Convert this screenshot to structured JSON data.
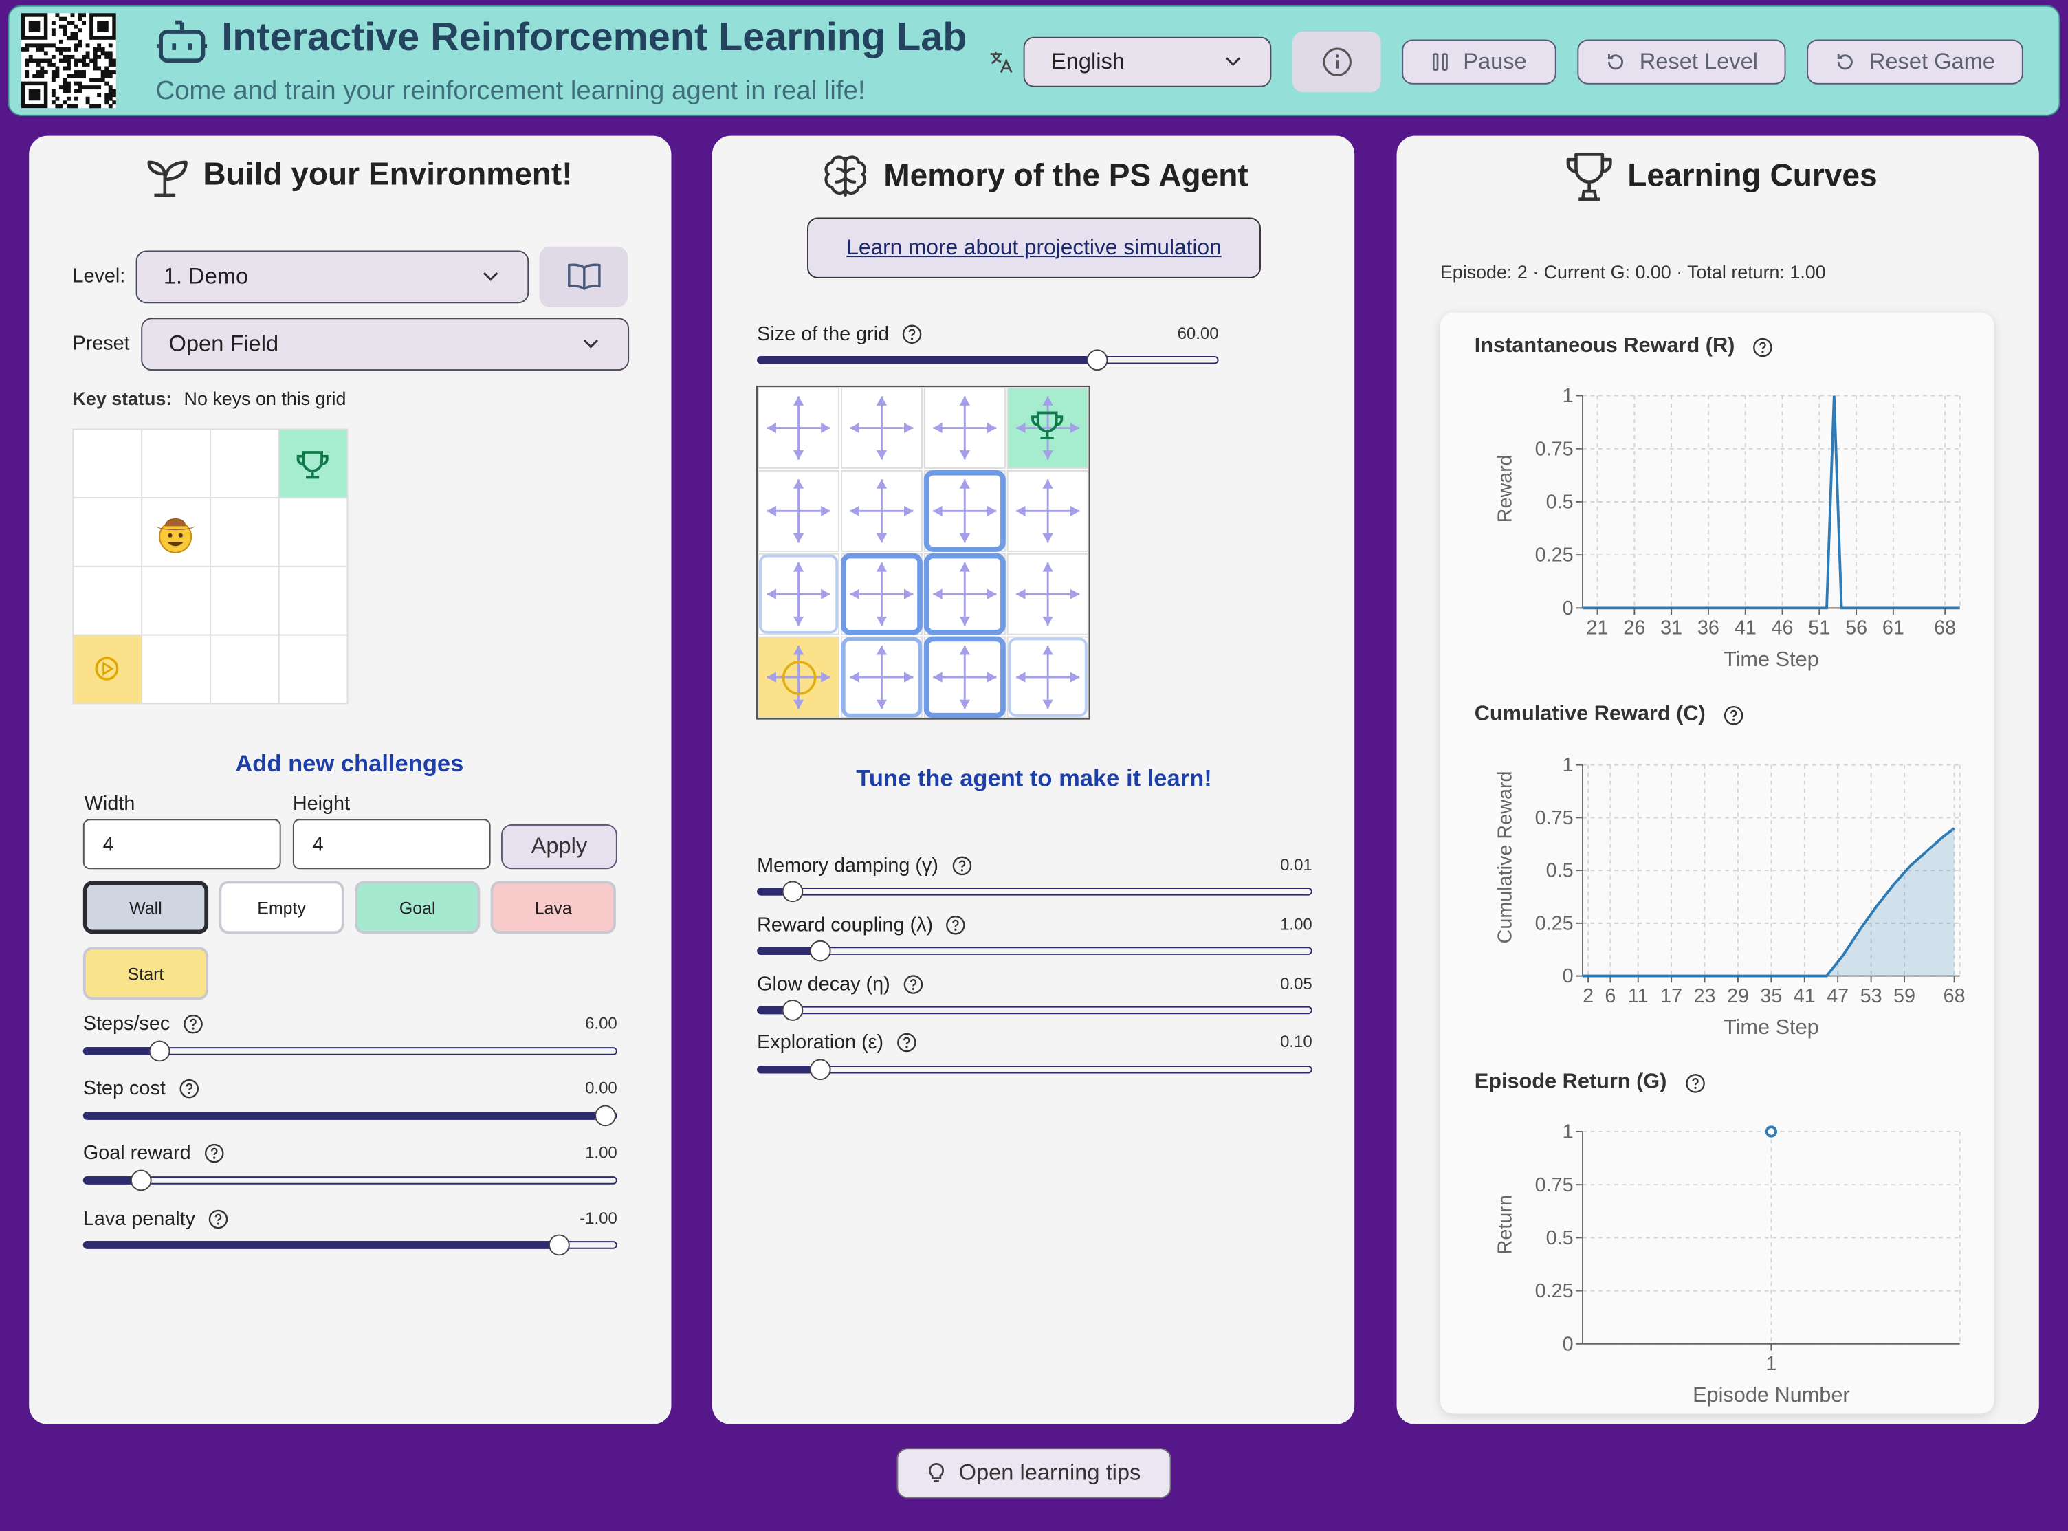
{
  "header": {
    "title": "Interactive Reinforcement Learning Lab",
    "subtitle": "Come and train your reinforcement learning agent in real life!",
    "language": "English",
    "buttons": [
      "Pause",
      "Reset Level",
      "Reset Game"
    ]
  },
  "environment": {
    "title": "Build your Environment!",
    "level_label": "Level:",
    "level": "1. Demo",
    "preset_label": "Preset",
    "preset": "Open Field",
    "key_status_label": "Key status:",
    "key_status": "No keys on this grid",
    "challenges_title": "Add new challenges",
    "width_label": "Width",
    "width": "4",
    "height_label": "Height",
    "height": "4",
    "apply": "Apply",
    "tiles": [
      "Wall",
      "Empty",
      "Goal",
      "Lava",
      "Start"
    ],
    "sliders": [
      {
        "label": "Steps/sec",
        "value": "6.00"
      },
      {
        "label": "Step cost",
        "value": "0.00"
      },
      {
        "label": "Goal reward",
        "value": "1.00"
      },
      {
        "label": "Lava penalty",
        "value": "-1.00"
      }
    ]
  },
  "memory": {
    "title": "Memory of the PS Agent",
    "link": "Learn more about projective simulation",
    "grid_size": {
      "label": "Size of the grid",
      "value": "60.00"
    },
    "tune_title": "Tune the agent to make it learn!",
    "sliders": [
      {
        "label": "Memory damping (γ)",
        "value": "0.01"
      },
      {
        "label": "Reward coupling (λ)",
        "value": "1.00"
      },
      {
        "label": "Glow decay (η)",
        "value": "0.05"
      },
      {
        "label": "Exploration (ε)",
        "value": "0.10"
      }
    ]
  },
  "learning_curves": {
    "title": "Learning Curves",
    "episode_info": "Episode: 2 · Current G: 0.00 · Total return: 1.00",
    "charts": [
      {
        "type": "line",
        "title": "Instantaneous Reward (R)",
        "x_label": "Time Step",
        "y_label": "Reward",
        "color": "#2f7bb5",
        "grid": true,
        "x": [
          19,
          52,
          53,
          54,
          70
        ],
        "values": [
          0,
          0,
          1,
          0,
          0
        ],
        "xlim": [
          19,
          70
        ],
        "ylim": [
          0,
          1
        ],
        "xticks": [
          21,
          26,
          31,
          36,
          41,
          46,
          51,
          56,
          61,
          68
        ],
        "yticks": [
          0,
          0.25,
          0.5,
          0.75,
          1
        ]
      },
      {
        "type": "area",
        "title": "Cumulative Reward (C)",
        "x_label": "Time Step",
        "y_label": "Cumulative Reward",
        "color": "#2f7bb5",
        "grid": true,
        "x": [
          1,
          45,
          48,
          51,
          54,
          57,
          60,
          63,
          66,
          68
        ],
        "values": [
          0,
          0,
          0.1,
          0.22,
          0.33,
          0.43,
          0.52,
          0.59,
          0.66,
          0.7
        ],
        "xlim": [
          1,
          69
        ],
        "ylim": [
          0,
          1
        ],
        "xticks": [
          2,
          6,
          11,
          17,
          23,
          29,
          35,
          41,
          47,
          53,
          59,
          68
        ],
        "yticks": [
          0,
          0.25,
          0.5,
          0.75,
          1
        ]
      },
      {
        "type": "scatter",
        "title": "Episode Return (G)",
        "x_label": "Episode Number",
        "y_label": "Return",
        "color": "#2f7bb5",
        "grid": true,
        "x": [
          1
        ],
        "values": [
          1
        ],
        "xlim": [
          0,
          2
        ],
        "ylim": [
          0,
          1
        ],
        "xticks": [
          1
        ],
        "yticks": [
          0,
          0.25,
          0.5,
          0.75,
          1
        ]
      }
    ]
  },
  "footer": {
    "tips": "Open learning tips"
  }
}
